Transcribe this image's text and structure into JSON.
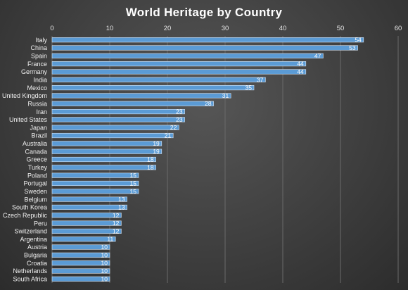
{
  "chart_data": {
    "type": "bar",
    "orientation": "horizontal",
    "title": "World Heritage by Country",
    "categories": [
      "Italy",
      "China",
      "Spain",
      "France",
      "Germany",
      "India",
      "Mexico",
      "United Kingdom",
      "Russia",
      "Iran",
      "United States",
      "Japan",
      "Brazil",
      "Australia",
      "Canada",
      "Greece",
      "Turkey",
      "Poland",
      "Portugal",
      "Sweden",
      "Belgium",
      "South Korea",
      "Czech Republic",
      "Peru",
      "Switzerland",
      "Argentina",
      "Austria",
      "Bulgaria",
      "Croatia",
      "Netherlands",
      "South Africa"
    ],
    "values": [
      54,
      53,
      47,
      44,
      44,
      37,
      35,
      31,
      28,
      23,
      23,
      22,
      21,
      19,
      19,
      18,
      18,
      15,
      15,
      15,
      13,
      13,
      12,
      12,
      12,
      11,
      10,
      10,
      10,
      10,
      10
    ],
    "xlim": [
      0,
      60
    ],
    "xticks": [
      0,
      10,
      20,
      30,
      40,
      50,
      60
    ],
    "xaxis_position": "top",
    "grid": true,
    "data_labels": true,
    "colors": {
      "bar_fill": "#5b9bd5",
      "background": "#3f3f3f",
      "text": "#ffffff"
    }
  }
}
